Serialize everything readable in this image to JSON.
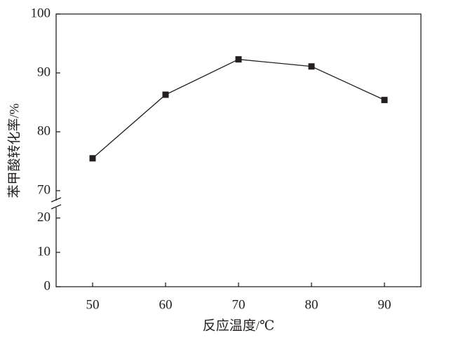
{
  "chart_data": {
    "type": "line",
    "x_label": "反应温度/℃",
    "y_label": "苯甲酸转化率/%",
    "x": [
      50,
      60,
      70,
      80,
      90
    ],
    "series": [
      {
        "values": [
          75.5,
          86.3,
          92.3,
          91.1,
          85.4
        ],
        "color": "#231f20"
      }
    ],
    "xlim": [
      45,
      95
    ],
    "xticks": [
      50,
      60,
      70,
      80,
      90
    ],
    "ylim": [
      0,
      100
    ],
    "ybreak": [
      20,
      70
    ],
    "yticks": [
      0,
      10,
      20,
      70,
      80,
      90,
      100
    ],
    "grid": false
  }
}
